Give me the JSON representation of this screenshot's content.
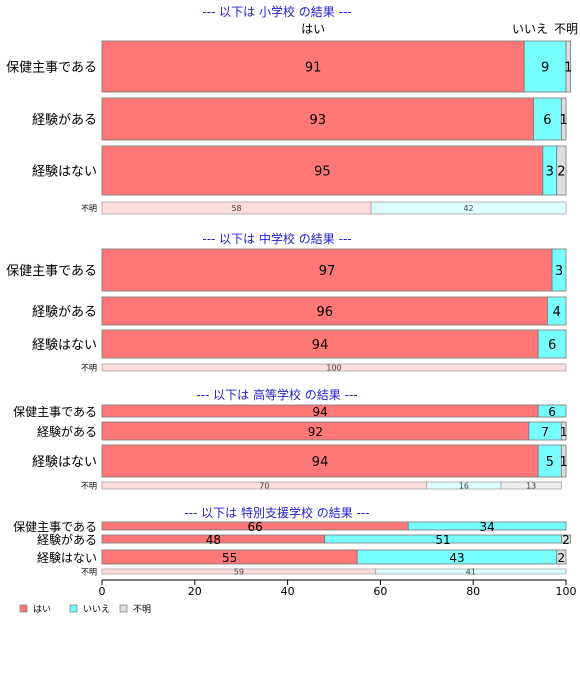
{
  "chart_data": {
    "type": "bar",
    "orientation": "horizontal",
    "stacked": true,
    "header_labels": [
      "はい",
      "いいえ",
      "不明"
    ],
    "xlim": [
      0,
      100
    ],
    "x_ticks": [
      "0",
      "20",
      "40",
      "60",
      "80",
      "100"
    ],
    "legend": {
      "placement": "bottom-left",
      "entries": [
        {
          "name": "はい",
          "color": "#FF7777"
        },
        {
          "name": "いいえ",
          "color": "#77FFFF"
        },
        {
          "name": "不明",
          "color": "#DDDDDD"
        }
      ]
    },
    "panels": [
      {
        "title": "--- 以下は 小学校 の結果 ---",
        "rows": [
          {
            "label": "保健主事である",
            "values": [
              91,
              9,
              1
            ]
          },
          {
            "label": "経験がある",
            "values": [
              93,
              6,
              1
            ]
          },
          {
            "label": "経験はない",
            "values": [
              95,
              3,
              2
            ]
          }
        ],
        "unknown": {
          "label": "不明",
          "values": [
            58,
            42,
            0
          ]
        }
      },
      {
        "title": "--- 以下は 中学校 の結果 ---",
        "rows": [
          {
            "label": "保健主事である",
            "values": [
              97,
              3,
              0
            ]
          },
          {
            "label": "経験がある",
            "values": [
              96,
              4,
              0
            ]
          },
          {
            "label": "経験はない",
            "values": [
              94,
              6,
              0
            ]
          }
        ],
        "unknown": {
          "label": "不明",
          "values": [
            100,
            0,
            0
          ]
        }
      },
      {
        "title": "--- 以下は 高等学校 の結果 ---",
        "rows": [
          {
            "label": "保健主事である",
            "values": [
              94,
              6,
              0
            ]
          },
          {
            "label": "経験がある",
            "values": [
              92,
              7,
              1
            ]
          },
          {
            "label": "経験はない",
            "values": [
              94,
              5,
              1
            ]
          }
        ],
        "unknown": {
          "label": "不明",
          "values": [
            70,
            16,
            13
          ]
        }
      },
      {
        "title": "--- 以下は 特別支援学校 の結果 ---",
        "rows": [
          {
            "label": "保健主事である",
            "values": [
              66,
              34,
              0
            ]
          },
          {
            "label": "経験がある",
            "values": [
              48,
              51,
              2
            ]
          },
          {
            "label": "経験はない",
            "values": [
              55,
              43,
              2
            ]
          }
        ],
        "unknown": {
          "label": "不明",
          "values": [
            59,
            41,
            0
          ]
        }
      }
    ]
  }
}
